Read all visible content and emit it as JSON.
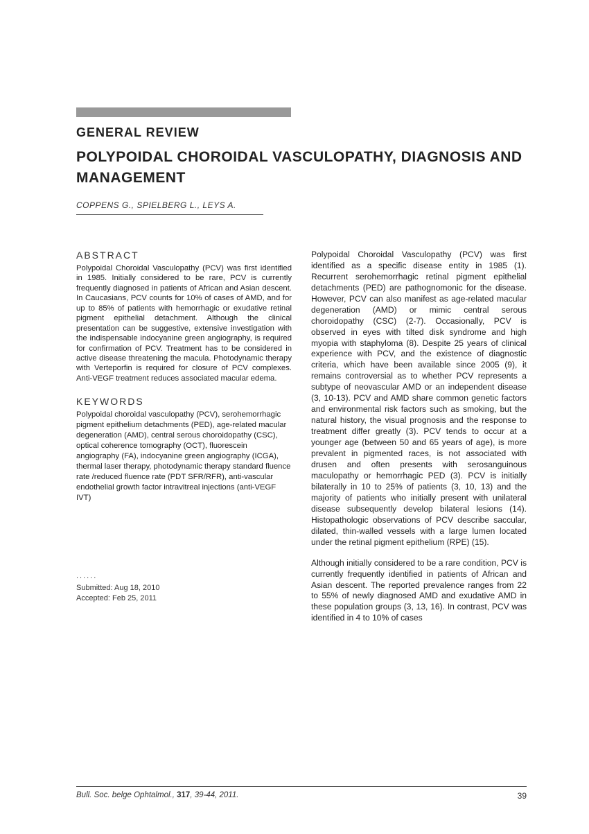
{
  "header": {
    "section_label": "GENERAL REVIEW",
    "title": "POLYPOIDAL CHOROIDAL VASCULOPATHY, DIAGNOSIS AND MANAGEMENT",
    "authors": "COPPENS G., SPIELBERG L., LEYS A."
  },
  "left_col": {
    "abstract_label": "ABSTRACT",
    "abstract_text": "Polypoidal Choroidal Vasculopathy (PCV) was first identified in 1985. Initially considered to be rare, PCV is currently frequently diagnosed in patients of African and Asian descent. In Caucasians, PCV counts for 10% of cases of AMD, and for up to 85% of patients with hemorrhagic or exudative retinal pigment epithelial detachment. Although the clinical presentation can be suggestive, extensive investigation with the indispensable indocyanine green angiography, is required for confirmation of PCV. Treatment has to be considered in active disease threatening the macula. Photodynamic therapy with Verteporfin is required for closure of PCV complexes. Anti-VEGF treatment reduces associated macular edema.",
    "keywords_label": "KEYWORDS",
    "keywords_text": "Polypoidal choroidal vasculopathy (PCV), serohemorrhagic pigment epithelium detachments (PED), age-related macular degeneration (AMD), central serous choroidopathy (CSC), optical coherence tomography (OCT), fluorescein angiography (FA), indocyanine green angiography (ICGA), thermal laser therapy, photodynamic therapy standard fluence rate /reduced fluence rate (PDT SFR/RFR), anti-vascular endothelial growth factor intravitreal injections (anti-VEGF IVT)",
    "dots": "......",
    "submitted": "Submitted: Aug 18, 2010",
    "accepted": "Accepted:   Feb 25, 2011"
  },
  "right_col": {
    "para1": "Polypoidal Choroidal Vasculopathy (PCV) was first identified as a specific disease entity in 1985 (1). Recurrent serohemorrhagic retinal pigment epithelial detachments (PED) are pathognomonic for the disease. However, PCV can also manifest as age-related macular degeneration (AMD) or mimic central serous choroidopathy (CSC) (2-7). Occasionally, PCV is observed in eyes with tilted disk syndrome and high myopia with staphyloma (8). Despite 25 years of clinical experience with PCV, and the existence of diagnostic criteria, which have been available since 2005 (9), it remains controversial as to whether PCV represents a subtype of neovascular AMD or an independent disease (3, 10-13). PCV and AMD share common genetic factors and environmental risk factors such as smoking, but the natural history, the visual prognosis and the response to treatment differ greatly (3). PCV tends to occur at a younger age (between 50 and 65 years of age), is more prevalent in pigmented races, is not associated with drusen and often presents with serosanguinous maculopathy or hemorrhagic PED (3). PCV is initially bilaterally in 10 to 25% of patients (3, 10, 13) and the majority of patients who initially present with unilateral disease subsequently develop bilateral lesions (14). Histopathologic observations of PCV describe saccular, dilated, thin-walled vessels with a large lumen located under the retinal pigment epithelium (RPE) (15).",
    "para2": "Although initially considered to be a rare condition, PCV is currently frequently identified in patients of African and Asian descent. The reported prevalence ranges from 22 to 55% of newly diagnosed AMD and exudative AMD in these population groups (3, 13, 16). In contrast, PCV was identified in 4 to 10% of cases"
  },
  "footer": {
    "journal": "Bull. Soc. belge Ophtalmol.,",
    "volume": "317",
    "pages_year": ", 39-44, 2011.",
    "page_number": "39"
  },
  "colors": {
    "header_bar": "#999999",
    "text": "#222222",
    "rule": "#555555"
  }
}
